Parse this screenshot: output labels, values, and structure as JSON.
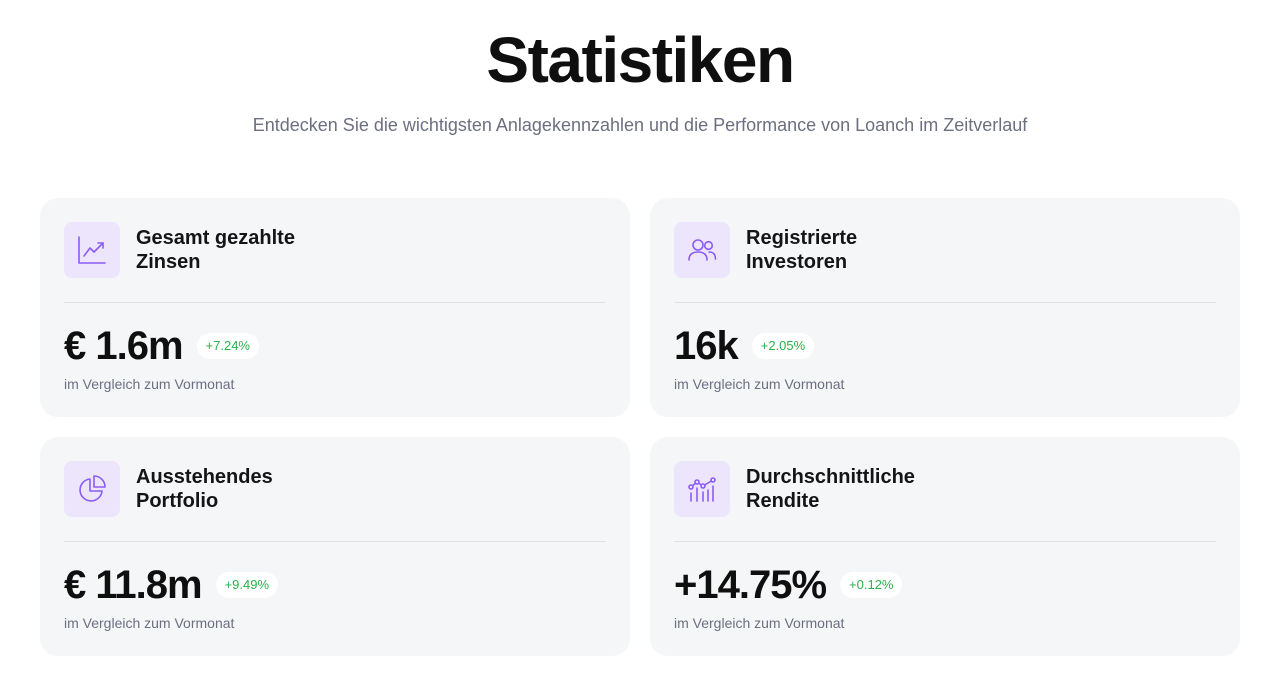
{
  "header": {
    "title": "Statistiken",
    "subtitle": "Entdecken Sie die wichtigsten Anlagekennzahlen und die Performance von Loanch im Zeitverlauf"
  },
  "colors": {
    "accent": "#8b5cf6",
    "icon_bg": "#ede5fb",
    "card_bg": "#f5f6f8",
    "positive": "#27b24a"
  },
  "cards": [
    {
      "icon": "line-chart-icon",
      "title": "Gesamt gezahlte\nZinsen",
      "value": "€ 1.6m",
      "change": "+7.24%",
      "compare": "im Vergleich zum Vormonat"
    },
    {
      "icon": "users-icon",
      "title": "Registrierte\nInvestoren",
      "value": "16k",
      "change": "+2.05%",
      "compare": "im Vergleich zum Vormonat"
    },
    {
      "icon": "pie-chart-icon",
      "title": "Ausstehendes\nPortfolio",
      "value": "€ 11.8m",
      "change": "+9.49%",
      "compare": "im Vergleich zum Vormonat"
    },
    {
      "icon": "chart-nodes-icon",
      "title": "Durchschnittliche\nRendite",
      "value": "+14.75%",
      "change": "+0.12%",
      "compare": "im Vergleich zum Vormonat"
    }
  ]
}
